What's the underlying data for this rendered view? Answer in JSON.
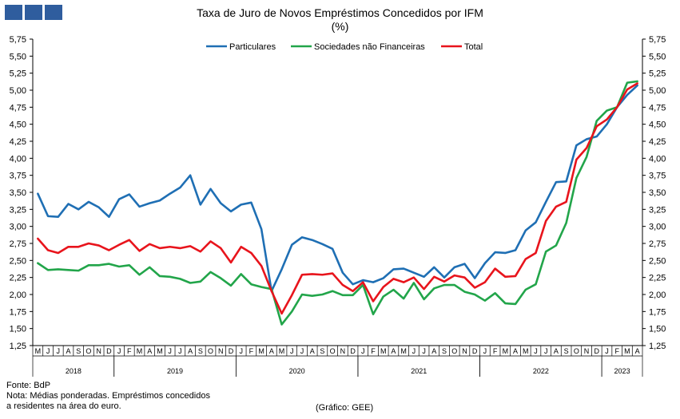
{
  "logo_color": "#2f5d9e",
  "title": "Taxa de Juro de Novos Empréstimos Concedidos por IFM",
  "subtitle": "(%)",
  "notes": {
    "source": "Fonte: BdP",
    "note_line1": "Nota: Médias ponderadas. Empréstimos concedidos",
    "note_line2": "a residentes na área do euro.",
    "credit": "(Gráfico: GEE)"
  },
  "chart_data": {
    "type": "line",
    "title": "Taxa de Juro de Novos Empréstimos Concedidos por IFM",
    "subtitle": "(%)",
    "xlabel": "",
    "ylabel": "",
    "ylim": [
      1.25,
      5.75
    ],
    "ytick_step": 0.25,
    "ytick_labels_left_and_right": true,
    "grid": false,
    "legend_position": "top-center",
    "month_labels": [
      "M",
      "J",
      "J",
      "A",
      "S",
      "O",
      "N",
      "D",
      "J",
      "F",
      "M",
      "A",
      "M",
      "J",
      "J",
      "A",
      "S",
      "O",
      "N",
      "D",
      "J",
      "F",
      "M",
      "A",
      "M",
      "J",
      "J",
      "A",
      "S",
      "O",
      "N",
      "D",
      "J",
      "F",
      "M",
      "A",
      "M",
      "J",
      "J",
      "A",
      "S",
      "O",
      "N",
      "D",
      "J",
      "F",
      "M",
      "A",
      "M",
      "J",
      "J",
      "A",
      "S",
      "O",
      "N",
      "D",
      "J",
      "F",
      "M",
      "A"
    ],
    "year_groups": [
      {
        "label": "2018",
        "start": 0,
        "count": 8
      },
      {
        "label": "2019",
        "start": 8,
        "count": 12
      },
      {
        "label": "2020",
        "start": 20,
        "count": 12
      },
      {
        "label": "2021",
        "start": 32,
        "count": 12
      },
      {
        "label": "2022",
        "start": 44,
        "count": 12
      },
      {
        "label": "2023",
        "start": 56,
        "count": 4
      }
    ],
    "series": [
      {
        "name": "Particulares",
        "color": "#1f6fb4",
        "values": [
          3.48,
          3.15,
          3.14,
          3.33,
          3.25,
          3.36,
          3.28,
          3.14,
          3.4,
          3.47,
          3.29,
          3.34,
          3.38,
          3.48,
          3.57,
          3.75,
          3.32,
          3.55,
          3.34,
          3.22,
          3.32,
          3.35,
          2.96,
          2.05,
          2.37,
          2.73,
          2.84,
          2.8,
          2.74,
          2.67,
          2.32,
          2.15,
          2.21,
          2.18,
          2.24,
          2.37,
          2.38,
          2.32,
          2.26,
          2.4,
          2.25,
          2.4,
          2.45,
          2.24,
          2.46,
          2.62,
          2.61,
          2.65,
          2.94,
          3.06,
          3.36,
          3.65,
          3.66,
          4.19,
          4.28,
          4.32,
          4.5,
          4.75,
          4.93,
          5.07
        ]
      },
      {
        "name": "Sociedades não Financeiras",
        "color": "#22a54a",
        "values": [
          2.46,
          2.36,
          2.37,
          2.36,
          2.35,
          2.43,
          2.43,
          2.45,
          2.41,
          2.43,
          2.29,
          2.4,
          2.27,
          2.26,
          2.23,
          2.17,
          2.19,
          2.33,
          2.24,
          2.13,
          2.3,
          2.15,
          2.11,
          2.08,
          1.56,
          1.75,
          2.0,
          1.98,
          2.0,
          2.05,
          1.99,
          1.99,
          2.14,
          1.71,
          1.97,
          2.07,
          1.94,
          2.17,
          1.93,
          2.09,
          2.14,
          2.14,
          2.04,
          2.0,
          1.91,
          2.02,
          1.87,
          1.86,
          2.07,
          2.15,
          2.63,
          2.72,
          3.05,
          3.71,
          4.02,
          4.55,
          4.7,
          4.75,
          5.11,
          5.13
        ]
      },
      {
        "name": "Total",
        "color": "#e8141c",
        "values": [
          2.82,
          2.65,
          2.61,
          2.7,
          2.7,
          2.75,
          2.72,
          2.65,
          2.73,
          2.8,
          2.64,
          2.74,
          2.68,
          2.7,
          2.68,
          2.71,
          2.63,
          2.78,
          2.68,
          2.47,
          2.7,
          2.61,
          2.42,
          2.05,
          1.72,
          1.99,
          2.29,
          2.3,
          2.29,
          2.31,
          2.14,
          2.05,
          2.18,
          1.9,
          2.11,
          2.23,
          2.18,
          2.25,
          2.08,
          2.26,
          2.19,
          2.28,
          2.25,
          2.1,
          2.18,
          2.38,
          2.26,
          2.27,
          2.52,
          2.61,
          3.08,
          3.29,
          3.36,
          3.98,
          4.15,
          4.47,
          4.57,
          4.75,
          5.01,
          5.1
        ]
      }
    ]
  }
}
